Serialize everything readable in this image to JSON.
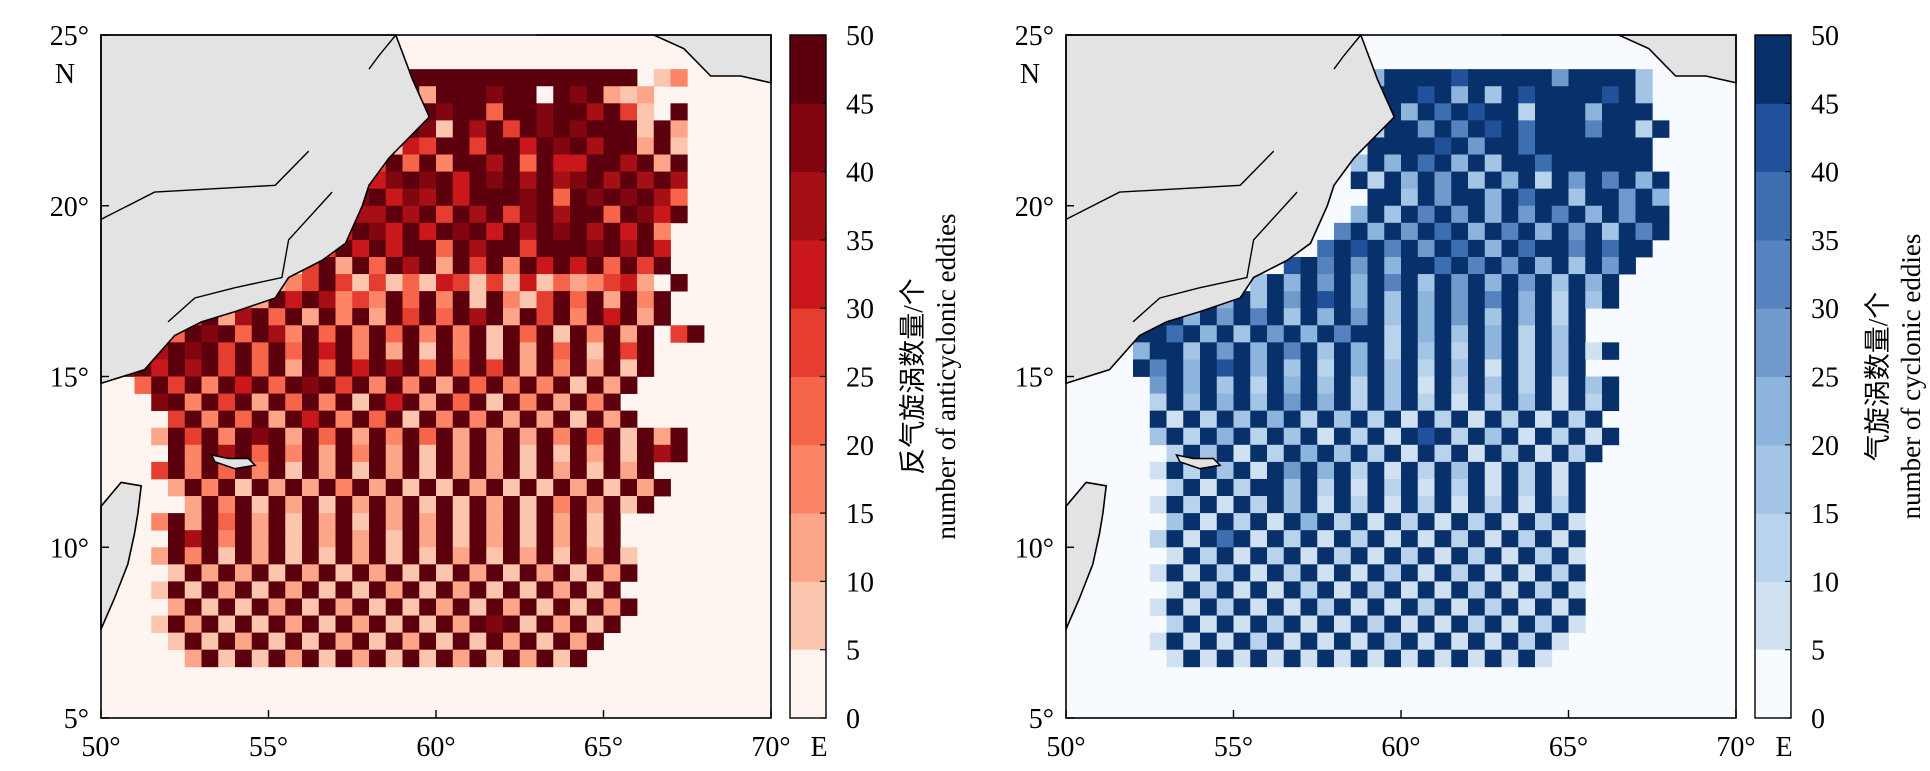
{
  "chart_data": [
    {
      "type": "heatmap",
      "panel": "left",
      "colorbar_label_zh": "反气旋涡数量/个",
      "colorbar_label_en": "number of anticyclonic eddies",
      "x_ticks": [
        "50°",
        "55°",
        "60°",
        "65°",
        "70°"
      ],
      "x_suffix": "E",
      "y_ticks": [
        "5°",
        "10°",
        "15°",
        "20°",
        "25°"
      ],
      "y_suffix": "N",
      "xlim": [
        50,
        70
      ],
      "ylim": [
        5,
        25
      ],
      "cell_size_deg": 0.5,
      "colorbar_ticks": [
        "0",
        "5",
        "10",
        "15",
        "20",
        "25",
        "30",
        "35",
        "40",
        "45",
        "50"
      ],
      "clim": [
        0,
        50
      ],
      "colormap": [
        "#fff5f0",
        "#fee0d2",
        "#fcc5ae",
        "#fca588",
        "#fb8566",
        "#f6654a",
        "#e53e31",
        "#c9171c",
        "#a50f15",
        "#820610",
        "#5b000c"
      ],
      "land_color": "#e3e3e3",
      "ocean_color": "#fff5f0",
      "grid_lon_range": [
        50.5,
        69
      ],
      "grid_lat_range": [
        6,
        24
      ],
      "data_rows_from_north": [
        ".........................................",
        "..................aaaaaaaaaaaaaaa.24.....",
        "................9a9a3aaa9aa0a9a323.......",
        ".................aa8a9aa5aa9aa8a62.a.....",
        "................7a9a92a8a6a9a9aaa2a3.....",
        "...............6a9276aa6aa7a9a8aa3a2.....",
        "..............6386a5a4aa8a5a77aa8a3a.....",
        "..............a6a79a9a7a9a8a89a8a8a8.....",
        ".........4.3..769a798a7aaa9a5a9a9a85.....",
        "............387a88a8a6a8a69a8aa5a97a.....",
        "..........4..7a7a97a7a9a7a8a9a8a7a4.....",
        ".........3.45a6a7a7aa5a8aa6aaa9a8a7......",
        ".......3.5a3.6a3a5a8a3a6a4a7a7a5a6a......",
        "........26.346a6262527626272534673.a.....",
        ".......4.53a7a8464a5a4a2a426a5a3a4a......",
        "......6a38a5a3a4a3a6a5a8a3a6a4a7a3a......",
        ".....5a9a5a84a5a4a5a4a4a2a5a2a4a3a.6a....",
        "....8a9a6a5a5a7a4a3a2a4a2a3a5a2a6a.......",
        "..9a7a8a6a5a3a5a7a8a5a5a6a3a4a3a2a......",
        "...5a6a4a7a5a9a6a4a4a3a5a4a4a2a3a........",
        "....9a4a6a3a5a4a2a7a3a5a2a4a3a4a.........",
        ".....6a4a5a3a7a4a5a2a4a4a3a3a2a3a........",
        "....3a6a4a9a3a5a3a4a5a3a3a3a4a5a2a3a.....",
        ".....a4a8a5a4a3a4a3a2a3a3a2a2a3a2a8a.....",
        "....6a4a5a4a2a3a2a3a2a3a3a2a3a2a3a.......",
        ".....3a4a2a3a3a4a3a2a2a3a2a2a3a2a3a......",
        "......3a4a2a3a2a3a3a2a2a3a2a4a3a2a.......",
        "....4a3a5a3a2a3a2a3a3a2a3a2a3a2a.........",
        ".....a8a4a3a2a3a3a2a3a2a3a2a3a2a.........",
        "....3a4a2a3a2a2a3a2a2a3a2a3a2a3a2........",
        ".....2a3a3a2a3a2a3a2a2a3a2a3a2a3a........",
        "....2a2a3a2a3a2a2a3a2a3a2a2a3a2a.........",
        ".....3a2a2a3a2a3a2a2a3a2a3a2a2a3a........",
        "....2a3a2a2a3a2a3a2a2a3a9a2a3a2a.........",
        ".....2a2a3a2a2a3a2a3a2a2a3a2a3a..........",
        "......3a2a2a3a2a3a2a2a3a2a3a2a...........",
        "........................................."
      ]
    },
    {
      "type": "heatmap",
      "panel": "right",
      "colorbar_label_zh": "气旋涡数量/个",
      "colorbar_label_en": "number of cyclonic eddies",
      "x_ticks": [
        "50°",
        "55°",
        "60°",
        "65°",
        "70°"
      ],
      "x_suffix": "E",
      "y_ticks": [
        "5°",
        "10°",
        "15°",
        "20°",
        "25°"
      ],
      "y_suffix": "N",
      "xlim": [
        50,
        70
      ],
      "ylim": [
        5,
        25
      ],
      "cell_size_deg": 0.5,
      "colorbar_ticks": [
        "0",
        "5",
        "10",
        "15",
        "20",
        "25",
        "30",
        "35",
        "40",
        "45",
        "50"
      ],
      "clim": [
        0,
        50
      ],
      "colormap": [
        "#f7fbff",
        "#e3edf8",
        "#d0e1f2",
        "#b9d3ec",
        "#a3c4e4",
        "#8cb4dc",
        "#7099cc",
        "#5683bf",
        "#3d6eb0",
        "#21519a",
        "#08306b"
      ],
      "land_color": "#e3e3e3",
      "ocean_color": "#f7fbff",
      "grid_lon_range": [
        50.5,
        69
      ],
      "grid_lat_range": [
        6,
        24
      ],
      "data_rows_from_north": [
        ".........................................",
        "...................5aaaa9aaaaa6aaaa4.....",
        "...................aaa9a5a4a9aaaa9a4.....",
        "....................a5a8a9aa3aaa5aaa.....",
        "...................3aa6a7a9a8aaa7aa3a....",
        "...................aaaa9a6aa8aaaaaaa.....",
        "..................4a5a8a5a4aa8aaaaaa.....",
        "..................a3a5a6a4a5a3a6a7a5a....",
        "...................aa4a6aa5a8aa4aa6a5....",
        "..................5a4a7a6a5a6a7a5a6aa....",
        ".................7a5a6a8a5a7a5a6a4a7a....",
        "................8a9a7a6a8a5a8aa7a8aa.....",
        "..............9a7a6a5aa8a7a6a5a4a6a......",
        "............4a5a6a5a7a4a6a5a6a4a5a.......",
        "........6a5a4a6a9a5a4a5a6a7a5a3a4a.......",
        "......aa5a6a7a4a5a6a4a5a6a4a5a3a.........",
        ".....aa8a5a4a6a5a7aa3a5a4a5a3a4a.........",
        ".....5aa4a6a5a7a4a5a3a4a3a5a3a4a2a.......",
        ".....a7a5a9a5a4a3a5a4a3a4a2a3a4a.........",
        "......6a5a4a3a5a4a3a4a2a3a4a3a2a4a.......",
        "......3a4a5a4a6a5a3a4a3a2a3a4a2a3a.......",
        "......a2a3a4a5a3a4a3a2a3a2a3a2a3a........",
        "......4a3a5a3a4a2a3a2a9a3a4a2a3a2a.......",
        ".......3a4a2a3a5a4a3a2a3a2a3a2a3a........",
        "......2a3a4a2a6a5a3a2a3a4a2a3a2a.........",
        ".......3a2a3aa4a3a2a3a2a3a2a3a2a.........",
        "......2a3a2a3a4a2a3a2a3a2a3a2a3a.........",
        ".......4a2a3a2a5a3a2a3a2a3a2a3a2.........",
        "......3a2a8a2a3a2a3a2a2a3a2a3a2a.........",
        ".......2a3a2a3a2a3a2a3a2a3a2a3a2.........",
        "......2a2a3a2a3a2a2a3a2a3a2a2a3a.........",
        ".......2a3a2a2a3a2a3a2a2a3a2a3a2.........",
        "......2a2a3a2a2a3a2a2a3a2a3a2a2a.........",
        ".......3a2a2a3a2a2a3a2a2a3a2a3a2.........",
        "......2a2a2a3a2a2a2a3a2a2a2a3a2..........",
        ".......2a2a2a2a2a2a2a2a2a2a2a2...........",
        "........................................."
      ]
    }
  ]
}
